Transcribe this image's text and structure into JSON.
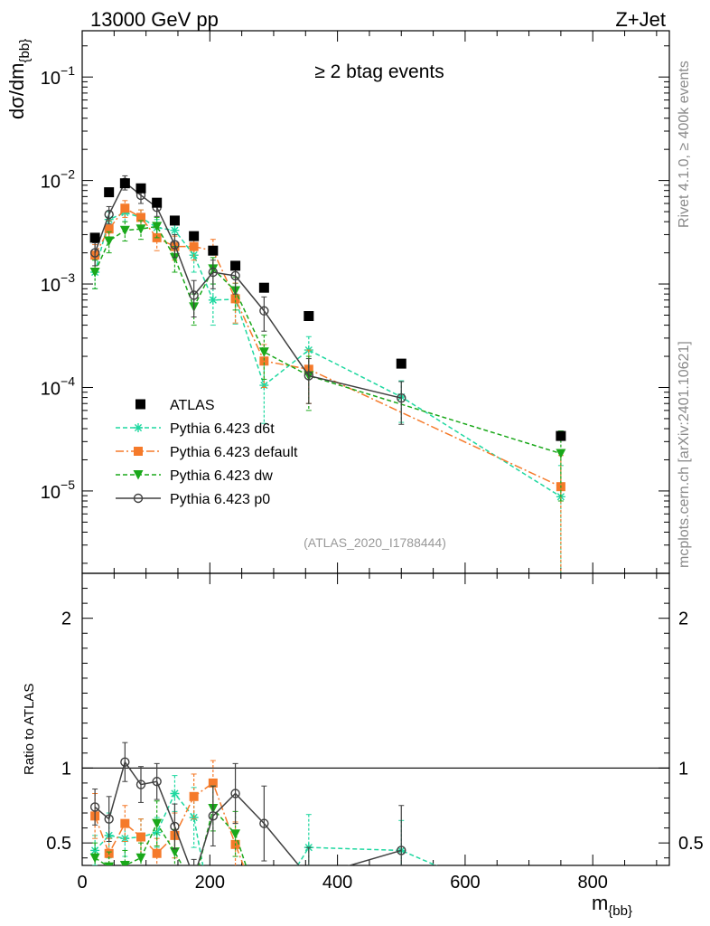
{
  "header": {
    "left": "13000 GeV pp",
    "right": "Z+Jet",
    "rivet_label": "Rivet 4.1.0, ≥ 400k events",
    "mcplots_label": "mcplots.cern.ch [arXiv:2401.10621]"
  },
  "colors": {
    "atlas": "#000000",
    "d6t": "#1fd8a0",
    "default": "#f57a2a",
    "dw": "#1aa81a",
    "p0": "#404040"
  },
  "chart_data": {
    "type": "line",
    "title": "≥ 2 btag events",
    "analysis_tag": "(ATLAS_2020_I1788444)",
    "xlabel": "m_{bb}",
    "xlabel_main": "m",
    "xlabel_sub": "{bb}",
    "ylabel": "dσ/dm_{bb}",
    "ylabel_main": "dσ/dm",
    "ylabel_sub": "{bb}",
    "ratio_ylabel": "Ratio to ATLAS",
    "xlim": [
      0,
      920
    ],
    "ylim": [
      1.6e-06,
      0.28
    ],
    "ratio_ylim": [
      0.35,
      2.3
    ],
    "x_ticks": [
      {
        "value": 0,
        "label": "0"
      },
      {
        "value": 200,
        "label": "200"
      },
      {
        "value": 400,
        "label": "400"
      },
      {
        "value": 600,
        "label": "600"
      },
      {
        "value": 800,
        "label": "800"
      }
    ],
    "y_ticks": [
      {
        "value": 1e-05,
        "base": "10",
        "exp": "−5"
      },
      {
        "value": 0.0001,
        "base": "10",
        "exp": "−4"
      },
      {
        "value": 0.001,
        "base": "10",
        "exp": "−3"
      },
      {
        "value": 0.01,
        "base": "10",
        "exp": "−2"
      },
      {
        "value": 0.1,
        "base": "10",
        "exp": "−1"
      }
    ],
    "ratio_ticks": [
      {
        "value": 0.5,
        "label": "0.5"
      },
      {
        "value": 1,
        "label": "1"
      },
      {
        "value": 2,
        "label": "2"
      }
    ],
    "x": [
      20,
      42,
      67,
      92,
      117,
      145,
      175,
      205,
      240,
      285,
      355,
      500,
      750
    ],
    "data": {
      "name": "ATLAS",
      "values": [
        0.0028,
        0.0077,
        0.0094,
        0.0084,
        0.0061,
        0.0041,
        0.0029,
        0.0021,
        0.0015,
        0.00092,
        0.00049,
        0.00017,
        3.4e-05
      ]
    },
    "series": [
      {
        "key": "d6t",
        "name": "Pythia 6.423 d6t",
        "marker": "star",
        "dash": "5,3",
        "values": [
          0.0013,
          0.0042,
          0.0049,
          0.0044,
          0.0035,
          0.0033,
          0.0019,
          0.0007,
          0.00071,
          0.000105,
          0.00023,
          8.1e-05,
          8.8e-06
        ],
        "errors": [
          0.0004,
          0.0008,
          0.0009,
          0.0008,
          0.0007,
          0.0008,
          0.0006,
          0.0003,
          0.0003,
          6e-05,
          8e-05,
          3.5e-05,
          8.8e-06
        ],
        "ratio": [
          0.45,
          0.55,
          0.53,
          0.54,
          0.57,
          0.83,
          0.67,
          null,
          null,
          null,
          0.47,
          0.45,
          null
        ],
        "ratio_errors": [
          0.1,
          0.15,
          0.12,
          0.12,
          0.1,
          0.12,
          0.2,
          null,
          null,
          null,
          0.22,
          0.2,
          null
        ]
      },
      {
        "key": "default",
        "name": "Pythia 6.423 default",
        "marker": "square",
        "dash": "9,3,2,3",
        "values": [
          0.0019,
          0.0034,
          0.0054,
          0.0044,
          0.0028,
          0.0023,
          0.0023,
          0.0021,
          0.00072,
          0.00018,
          0.00015,
          null,
          1.1e-05
        ],
        "errors": [
          0.0005,
          0.0007,
          0.001,
          0.0008,
          0.0007,
          0.0006,
          0.0006,
          0.0006,
          0.0003,
          8e-05,
          8e-05,
          null,
          1.1e-05
        ],
        "ratio": [
          0.68,
          0.43,
          0.63,
          0.54,
          0.43,
          0.55,
          0.81,
          0.9,
          0.49,
          null,
          null,
          null,
          null
        ],
        "ratio_errors": [
          0.15,
          0.1,
          0.12,
          0.12,
          0.1,
          0.15,
          0.15,
          0.15,
          0.15,
          null,
          null,
          null,
          null
        ]
      },
      {
        "key": "dw",
        "name": "Pythia 6.423 dw",
        "marker": "triangle-down",
        "dash": "5,3",
        "values": [
          0.0013,
          0.0026,
          0.0033,
          0.0034,
          0.0036,
          0.0018,
          0.0006,
          0.0014,
          0.00086,
          0.00022,
          0.00013,
          null,
          2.3e-05
        ],
        "errors": [
          0.0004,
          0.0006,
          0.0007,
          0.0007,
          0.0008,
          0.0005,
          0.0002,
          0.0004,
          0.0003,
          0.0001,
          7e-05,
          null,
          1.5e-05
        ],
        "ratio": [
          0.4,
          0.34,
          0.35,
          0.4,
          0.63,
          0.44,
          0.21,
          0.73,
          0.56,
          null,
          null,
          null,
          null
        ],
        "ratio_errors": [
          0.1,
          0.1,
          0.1,
          0.1,
          0.15,
          0.15,
          0.1,
          0.15,
          0.15,
          null,
          null,
          null,
          null
        ]
      },
      {
        "key": "p0",
        "name": "Pythia 6.423 p0",
        "marker": "circle-open",
        "dash": "",
        "values": [
          0.002,
          0.0047,
          0.0096,
          0.0072,
          0.0055,
          0.0024,
          0.00078,
          0.0013,
          0.0012,
          0.00055,
          0.00013,
          7.9e-05,
          null
        ],
        "errors": [
          0.0005,
          0.0009,
          0.0015,
          0.0012,
          0.001,
          0.0006,
          0.0003,
          0.0004,
          0.0004,
          0.0002,
          6e-05,
          3.5e-05,
          null
        ],
        "ratio": [
          0.74,
          0.66,
          1.04,
          0.89,
          0.91,
          0.61,
          0.27,
          0.68,
          0.83,
          0.63,
          0.27,
          0.45,
          null
        ],
        "ratio_errors": [
          0.12,
          0.15,
          0.13,
          0.12,
          0.12,
          0.15,
          0.12,
          0.2,
          0.2,
          0.25,
          0.2,
          0.3,
          null
        ]
      }
    ],
    "legend_position": "lower-left"
  }
}
